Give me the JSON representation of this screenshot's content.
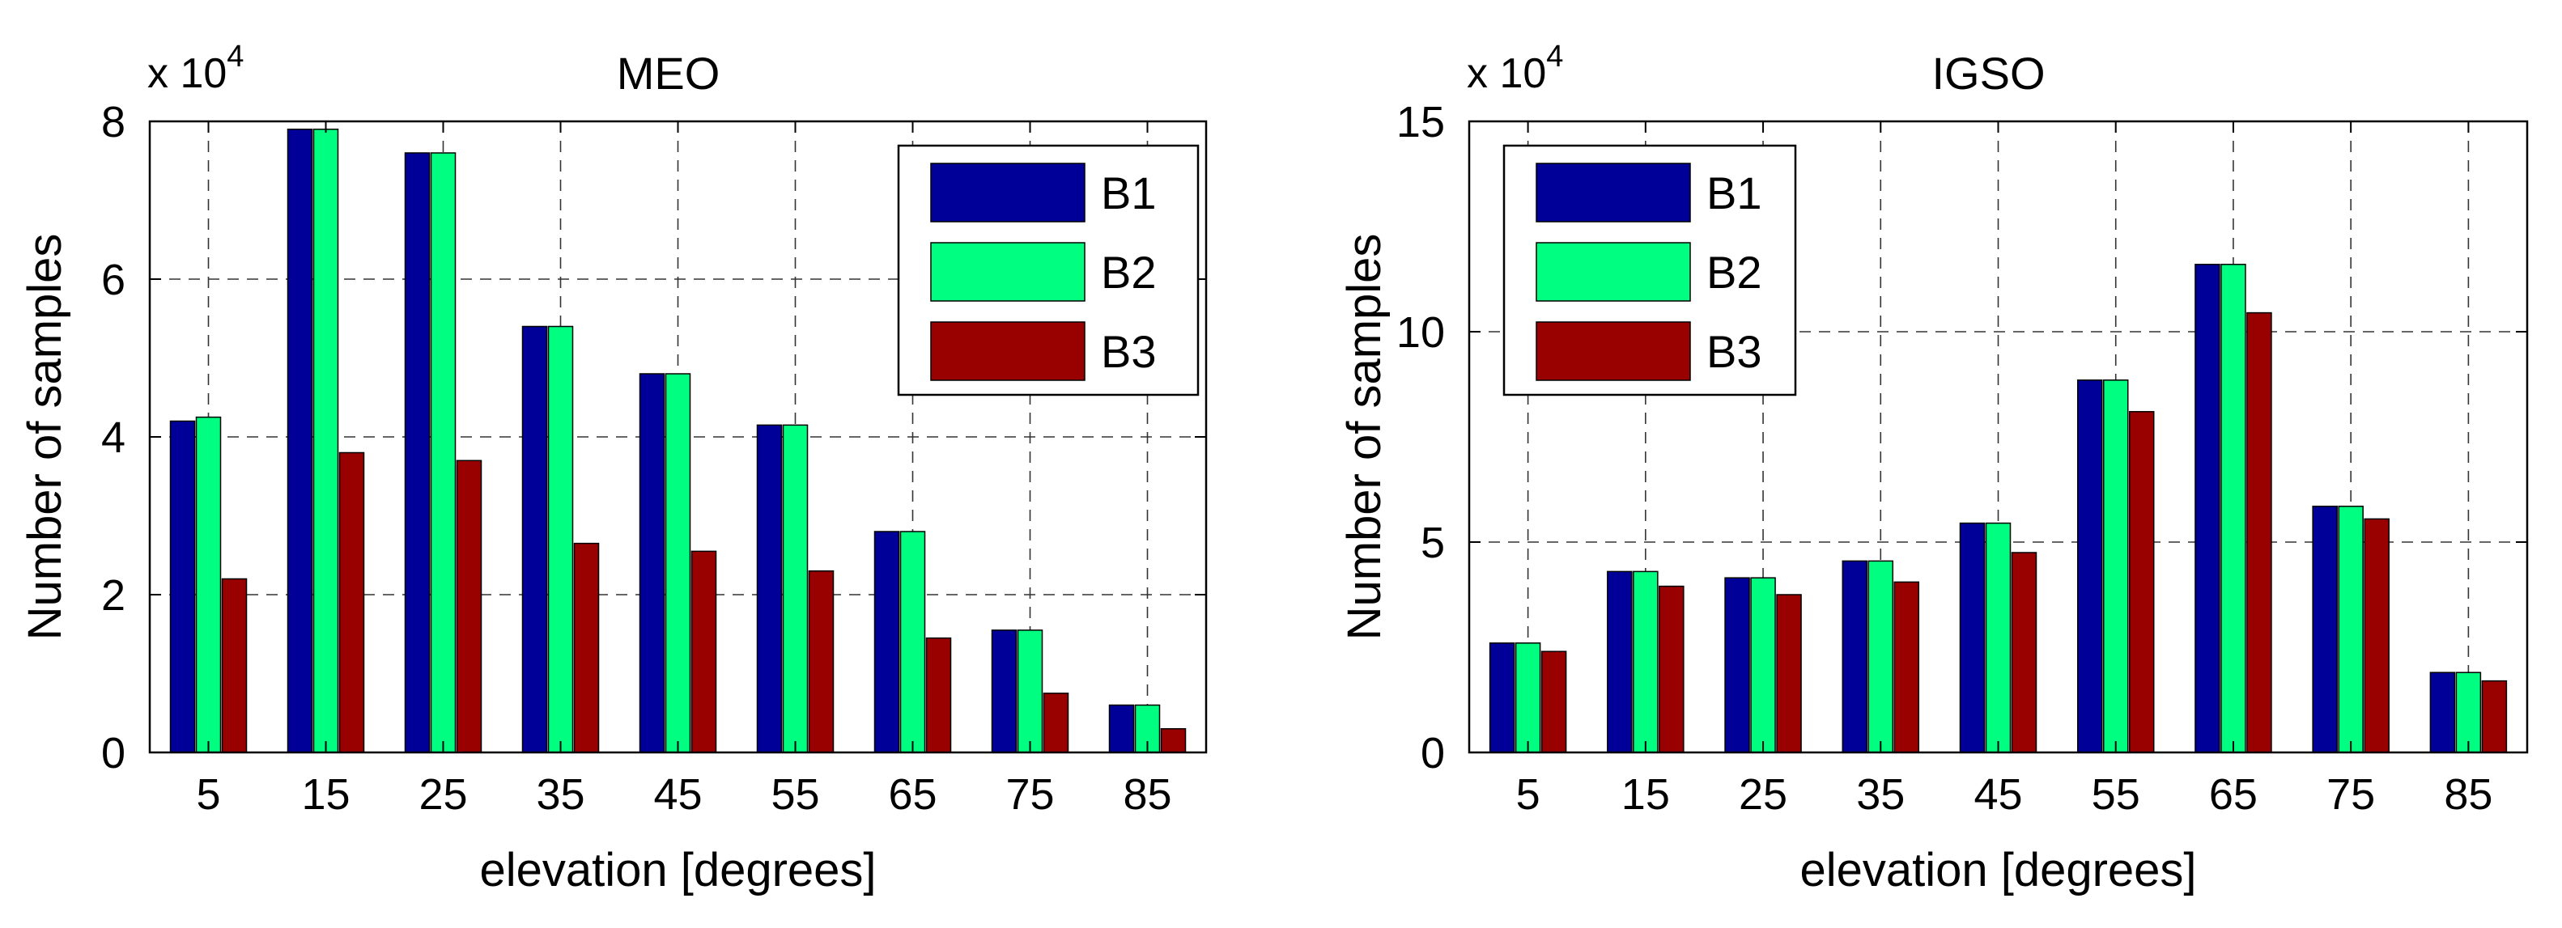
{
  "chart_data": [
    {
      "type": "bar",
      "title": "MEO",
      "xlabel": "elevation [degrees]",
      "ylabel": "Number of samples",
      "scale_label": "x 10",
      "scale_exponent": "4",
      "categories": [
        "5",
        "15",
        "25",
        "35",
        "45",
        "55",
        "65",
        "75",
        "85"
      ],
      "ylim": [
        0,
        8
      ],
      "yticks": [
        "0",
        "2",
        "4",
        "6",
        "8"
      ],
      "grid": true,
      "legend_position": "top-right",
      "series": [
        {
          "name": "B1",
          "color": "#000099",
          "values": [
            4.2,
            7.9,
            7.6,
            5.4,
            4.8,
            4.15,
            2.8,
            1.55,
            0.6
          ]
        },
        {
          "name": "B2",
          "color": "#00ff80",
          "values": [
            4.25,
            7.9,
            7.6,
            5.4,
            4.8,
            4.15,
            2.8,
            1.55,
            0.6
          ]
        },
        {
          "name": "B3",
          "color": "#990000",
          "values": [
            2.2,
            3.8,
            3.7,
            2.65,
            2.55,
            2.3,
            1.45,
            0.75,
            0.3
          ]
        }
      ]
    },
    {
      "type": "bar",
      "title": "IGSO",
      "xlabel": "elevation [degrees]",
      "ylabel": "Number of samples",
      "scale_label": "x 10",
      "scale_exponent": "4",
      "categories": [
        "5",
        "15",
        "25",
        "35",
        "45",
        "55",
        "65",
        "75",
        "85"
      ],
      "ylim": [
        0,
        15
      ],
      "yticks": [
        "0",
        "5",
        "10",
        "15"
      ],
      "grid": true,
      "legend_position": "top-left",
      "series": [
        {
          "name": "B1",
          "color": "#000099",
          "values": [
            2.6,
            4.3,
            4.15,
            4.55,
            5.45,
            8.85,
            11.6,
            5.85,
            1.9
          ]
        },
        {
          "name": "B2",
          "color": "#00ff80",
          "values": [
            2.6,
            4.3,
            4.15,
            4.55,
            5.45,
            8.85,
            11.6,
            5.85,
            1.9
          ]
        },
        {
          "name": "B3",
          "color": "#990000",
          "values": [
            2.4,
            3.95,
            3.75,
            4.05,
            4.75,
            8.1,
            10.45,
            5.55,
            1.7
          ]
        }
      ]
    }
  ]
}
